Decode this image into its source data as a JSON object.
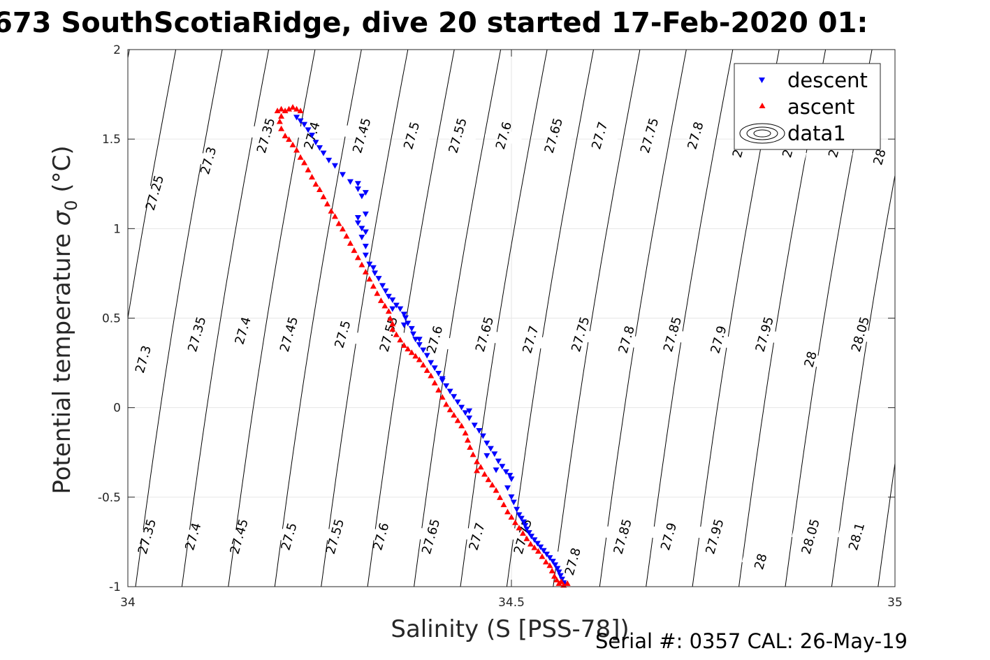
{
  "chart_data": {
    "type": "scatter",
    "title": "673 SouthScotiaRidge, dive 20 started 17-Feb-2020 01:",
    "xlabel": "Salinity (S [PSS-78])",
    "ylabel_main": "Potential temperature ",
    "ylabel_sym": "σ",
    "ylabel_sub": "0",
    "ylabel_unit": " (°C)",
    "xlim": [
      34,
      35
    ],
    "ylim": [
      -1,
      2
    ],
    "xticks": [
      "34",
      "34.5",
      "35"
    ],
    "yticks": [
      "2",
      "1.5",
      "1",
      "0.5",
      "0",
      "-0.5",
      "-1"
    ],
    "xtick_values": [
      34,
      34.5,
      35
    ],
    "ytick_values": [
      2,
      1.5,
      1,
      0.5,
      0,
      -0.5,
      -1
    ],
    "grid": true,
    "legend_position": "top-right",
    "legend": [
      "descent",
      "ascent",
      "data1"
    ],
    "series": [
      {
        "name": "descent",
        "marker": "triangle-down",
        "color": "#0000ff",
        "points": [
          [
            34.22,
            1.62
          ],
          [
            34.225,
            1.6
          ],
          [
            34.23,
            1.58
          ],
          [
            34.235,
            1.55
          ],
          [
            34.24,
            1.52
          ],
          [
            34.245,
            1.48
          ],
          [
            34.25,
            1.45
          ],
          [
            34.255,
            1.42
          ],
          [
            34.262,
            1.38
          ],
          [
            34.27,
            1.35
          ],
          [
            34.28,
            1.3
          ],
          [
            34.29,
            1.26
          ],
          [
            34.3,
            1.22
          ],
          [
            34.305,
            1.18
          ],
          [
            34.3,
            1.25
          ],
          [
            34.31,
            1.2
          ],
          [
            34.3,
            1.06
          ],
          [
            34.3,
            1.03
          ],
          [
            34.305,
            1.0
          ],
          [
            34.31,
            0.98
          ],
          [
            34.31,
            1.08
          ],
          [
            34.305,
            0.95
          ],
          [
            34.31,
            0.9
          ],
          [
            34.31,
            0.85
          ],
          [
            34.315,
            0.8
          ],
          [
            34.32,
            0.78
          ],
          [
            34.322,
            0.75
          ],
          [
            34.327,
            0.72
          ],
          [
            34.332,
            0.68
          ],
          [
            34.336,
            0.65
          ],
          [
            34.34,
            0.62
          ],
          [
            34.345,
            0.6
          ],
          [
            34.35,
            0.57
          ],
          [
            34.355,
            0.55
          ],
          [
            34.36,
            0.52
          ],
          [
            34.362,
            0.5
          ],
          [
            34.365,
            0.47
          ],
          [
            34.37,
            0.44
          ],
          [
            34.372,
            0.41
          ],
          [
            34.375,
            0.38
          ],
          [
            34.38,
            0.35
          ],
          [
            34.385,
            0.32
          ],
          [
            34.39,
            0.29
          ],
          [
            34.395,
            0.25
          ],
          [
            34.4,
            0.22
          ],
          [
            34.405,
            0.19
          ],
          [
            34.41,
            0.15
          ],
          [
            34.415,
            0.12
          ],
          [
            34.42,
            0.09
          ],
          [
            34.425,
            0.06
          ],
          [
            34.43,
            0.03
          ],
          [
            34.435,
            0.0
          ],
          [
            34.44,
            -0.03
          ],
          [
            34.445,
            -0.06
          ],
          [
            34.452,
            -0.1
          ],
          [
            34.458,
            -0.13
          ],
          [
            34.463,
            -0.16
          ],
          [
            34.468,
            -0.2
          ],
          [
            34.473,
            -0.23
          ],
          [
            34.478,
            -0.26
          ],
          [
            34.483,
            -0.3
          ],
          [
            34.488,
            -0.33
          ],
          [
            34.493,
            -0.36
          ],
          [
            34.498,
            -0.38
          ],
          [
            34.5,
            -0.4
          ],
          [
            34.495,
            -0.45
          ],
          [
            34.5,
            -0.5
          ],
          [
            34.503,
            -0.53
          ],
          [
            34.507,
            -0.57
          ],
          [
            34.51,
            -0.6
          ],
          [
            34.513,
            -0.62
          ],
          [
            34.516,
            -0.64
          ],
          [
            34.518,
            -0.66
          ],
          [
            34.52,
            -0.68
          ],
          [
            34.523,
            -0.7
          ],
          [
            34.526,
            -0.72
          ],
          [
            34.53,
            -0.74
          ],
          [
            34.534,
            -0.76
          ],
          [
            34.538,
            -0.78
          ],
          [
            34.542,
            -0.8
          ],
          [
            34.546,
            -0.82
          ],
          [
            34.55,
            -0.84
          ],
          [
            34.554,
            -0.86
          ],
          [
            34.557,
            -0.88
          ],
          [
            34.56,
            -0.9
          ],
          [
            34.562,
            -0.92
          ],
          [
            34.564,
            -0.94
          ],
          [
            34.566,
            -0.96
          ],
          [
            34.568,
            -0.98
          ],
          [
            34.57,
            -0.99
          ],
          [
            34.48,
            -0.35
          ],
          [
            34.468,
            -0.27
          ],
          [
            34.445,
            -0.02
          ],
          [
            34.41,
            0.16
          ],
          [
            34.38,
            0.38
          ],
          [
            34.36,
            0.46
          ],
          [
            34.345,
            0.55
          ]
        ]
      },
      {
        "name": "ascent",
        "marker": "triangle-up",
        "color": "#ff0000",
        "points": [
          [
            34.195,
            1.66
          ],
          [
            34.2,
            1.67
          ],
          [
            34.205,
            1.66
          ],
          [
            34.21,
            1.67
          ],
          [
            34.215,
            1.68
          ],
          [
            34.22,
            1.67
          ],
          [
            34.225,
            1.66
          ],
          [
            34.2,
            1.63
          ],
          [
            34.198,
            1.6
          ],
          [
            34.2,
            1.56
          ],
          [
            34.205,
            1.52
          ],
          [
            34.21,
            1.5
          ],
          [
            34.215,
            1.47
          ],
          [
            34.22,
            1.44
          ],
          [
            34.225,
            1.4
          ],
          [
            34.23,
            1.37
          ],
          [
            34.235,
            1.33
          ],
          [
            34.24,
            1.29
          ],
          [
            34.245,
            1.25
          ],
          [
            34.25,
            1.22
          ],
          [
            34.255,
            1.18
          ],
          [
            34.26,
            1.14
          ],
          [
            34.265,
            1.1
          ],
          [
            34.27,
            1.07
          ],
          [
            34.275,
            1.03
          ],
          [
            34.28,
            1.0
          ],
          [
            34.285,
            0.96
          ],
          [
            34.29,
            0.92
          ],
          [
            34.295,
            0.88
          ],
          [
            34.3,
            0.84
          ],
          [
            34.305,
            0.8
          ],
          [
            34.31,
            0.76
          ],
          [
            34.315,
            0.72
          ],
          [
            34.32,
            0.68
          ],
          [
            34.325,
            0.64
          ],
          [
            34.33,
            0.6
          ],
          [
            34.335,
            0.57
          ],
          [
            34.34,
            0.54
          ],
          [
            34.342,
            0.5
          ],
          [
            34.345,
            0.47
          ],
          [
            34.345,
            0.44
          ],
          [
            34.35,
            0.41
          ],
          [
            34.355,
            0.38
          ],
          [
            34.36,
            0.35
          ],
          [
            34.365,
            0.33
          ],
          [
            34.37,
            0.31
          ],
          [
            34.375,
            0.29
          ],
          [
            34.38,
            0.27
          ],
          [
            34.385,
            0.24
          ],
          [
            34.39,
            0.21
          ],
          [
            34.395,
            0.18
          ],
          [
            34.4,
            0.14
          ],
          [
            34.405,
            0.1
          ],
          [
            34.41,
            0.06
          ],
          [
            34.415,
            0.02
          ],
          [
            34.42,
            -0.01
          ],
          [
            34.425,
            -0.04
          ],
          [
            34.43,
            -0.07
          ],
          [
            34.435,
            -0.1
          ],
          [
            34.44,
            -0.14
          ],
          [
            34.443,
            -0.18
          ],
          [
            34.446,
            -0.22
          ],
          [
            34.45,
            -0.26
          ],
          [
            34.455,
            -0.3
          ],
          [
            34.46,
            -0.33
          ],
          [
            34.455,
            -0.35
          ],
          [
            34.465,
            -0.37
          ],
          [
            34.47,
            -0.4
          ],
          [
            34.475,
            -0.43
          ],
          [
            34.48,
            -0.46
          ],
          [
            34.485,
            -0.5
          ],
          [
            34.49,
            -0.54
          ],
          [
            34.495,
            -0.58
          ],
          [
            34.5,
            -0.61
          ],
          [
            34.505,
            -0.64
          ],
          [
            34.51,
            -0.67
          ],
          [
            34.515,
            -0.7
          ],
          [
            34.52,
            -0.73
          ],
          [
            34.525,
            -0.76
          ],
          [
            34.53,
            -0.78
          ],
          [
            34.535,
            -0.8
          ],
          [
            34.54,
            -0.83
          ],
          [
            34.545,
            -0.86
          ],
          [
            34.55,
            -0.88
          ],
          [
            34.553,
            -0.91
          ],
          [
            34.556,
            -0.94
          ],
          [
            34.559,
            -0.96
          ],
          [
            34.562,
            -0.98
          ],
          [
            34.565,
            -0.97
          ],
          [
            34.568,
            -0.99
          ],
          [
            34.573,
            -0.98
          ]
        ]
      }
    ],
    "isopycnals": [
      {
        "label": "27.25",
        "s": 34.0,
        "label_s": 34.035,
        "label_t": 1.2
      },
      {
        "label": "27.3",
        "s": 34.1,
        "label_s": 34.1,
        "label_t": 1.38
      },
      {
        "label": "27.35",
        "s": 34.16,
        "label_s": 34.18,
        "label_t": 1.54
      },
      {
        "label": "27.4",
        "s": 34.22,
        "label_s": 34.24,
        "label_t": 1.54
      },
      {
        "label": "27.45",
        "s": 34.29,
        "label_s": 34.31,
        "label_t": 1.54
      },
      {
        "label": "27.5",
        "s": 34.35,
        "label_s": 34.37,
        "label_t": 1.54
      },
      {
        "label": "27.55",
        "s": 34.41,
        "label_s": 34.43,
        "label_t": 1.54
      },
      {
        "label": "27.6",
        "s": 34.47,
        "label_s": 34.49,
        "label_t": 1.54
      },
      {
        "label": "27.65",
        "s": 34.53,
        "label_s": 34.555,
        "label_t": 1.54
      },
      {
        "label": "27.7",
        "s": 34.6,
        "label_s": 34.615,
        "label_t": 1.54
      },
      {
        "label": "27.75",
        "s": 34.66,
        "label_s": 34.68,
        "label_t": 1.54
      },
      {
        "label": "27.8",
        "s": 34.72,
        "label_s": 34.74,
        "label_t": 1.54
      },
      {
        "label": "27.85",
        "s": 34.78,
        "label_s": 34.79,
        "label_t": 1.45
      },
      {
        "label": "27.9",
        "s": 34.84,
        "label_s": 34.86,
        "label_t": 1.45
      },
      {
        "label": "27.95",
        "s": 34.9,
        "label_s": 34.92,
        "label_t": 1.45
      },
      {
        "label": "28",
        "s": 34.97,
        "label_s": 34.98,
        "label_t": 1.4
      },
      {
        "label": "28.05",
        "s": 35.03,
        "label_s": 35.0,
        "label_t": 0.5
      }
    ],
    "isopycnal_labels": [
      {
        "text": "27.3",
        "s": 34.02,
        "t": 0.27
      },
      {
        "text": "27.35",
        "s": 34.09,
        "t": 0.41
      },
      {
        "text": "27.4",
        "s": 34.15,
        "t": 0.43
      },
      {
        "text": "27.45",
        "s": 34.21,
        "t": 0.41
      },
      {
        "text": "27.5",
        "s": 34.28,
        "t": 0.41
      },
      {
        "text": "27.55",
        "s": 34.34,
        "t": 0.41
      },
      {
        "text": "27.6",
        "s": 34.4,
        "t": 0.38
      },
      {
        "text": "27.65",
        "s": 34.465,
        "t": 0.41
      },
      {
        "text": "27.7",
        "s": 34.525,
        "t": 0.38
      },
      {
        "text": "27.75",
        "s": 34.59,
        "t": 0.41
      },
      {
        "text": "27.8",
        "s": 34.65,
        "t": 0.38
      },
      {
        "text": "27.85",
        "s": 34.71,
        "t": 0.41
      },
      {
        "text": "27.9",
        "s": 34.77,
        "t": 0.38
      },
      {
        "text": "27.95",
        "s": 34.83,
        "t": 0.41
      },
      {
        "text": "28",
        "s": 34.89,
        "t": 0.27
      },
      {
        "text": "28.05",
        "s": 34.955,
        "t": 0.41
      },
      {
        "text": "27.35",
        "s": 34.025,
        "t": -0.72
      },
      {
        "text": "27.4",
        "s": 34.085,
        "t": -0.72
      },
      {
        "text": "27.45",
        "s": 34.145,
        "t": -0.72
      },
      {
        "text": "27.5",
        "s": 34.21,
        "t": -0.72
      },
      {
        "text": "27.55",
        "s": 34.27,
        "t": -0.72
      },
      {
        "text": "27.6",
        "s": 34.33,
        "t": -0.72
      },
      {
        "text": "27.65",
        "s": 34.395,
        "t": -0.72
      },
      {
        "text": "27.7",
        "s": 34.455,
        "t": -0.72
      },
      {
        "text": "27.75",
        "s": 34.515,
        "t": -0.72
      },
      {
        "text": "27.8",
        "s": 34.58,
        "t": -0.86
      },
      {
        "text": "27.85",
        "s": 34.645,
        "t": -0.72
      },
      {
        "text": "27.9",
        "s": 34.705,
        "t": -0.72
      },
      {
        "text": "27.95",
        "s": 34.765,
        "t": -0.72
      },
      {
        "text": "28",
        "s": 34.825,
        "t": -0.86
      },
      {
        "text": "28.05",
        "s": 34.89,
        "t": -0.72
      },
      {
        "text": "28.1",
        "s": 34.95,
        "t": -0.72
      },
      {
        "text": "27.25",
        "s": 34.035,
        "t": 1.2
      },
      {
        "text": "27.3",
        "s": 34.105,
        "t": 1.38
      },
      {
        "text": "27.35",
        "s": 34.18,
        "t": 1.52
      },
      {
        "text": "27.4",
        "s": 34.24,
        "t": 1.52
      },
      {
        "text": "27.45",
        "s": 34.305,
        "t": 1.52
      },
      {
        "text": "27.5",
        "s": 34.37,
        "t": 1.52
      },
      {
        "text": "27.55",
        "s": 34.43,
        "t": 1.52
      },
      {
        "text": "27.6",
        "s": 34.49,
        "t": 1.52
      },
      {
        "text": "27.65",
        "s": 34.555,
        "t": 1.52
      },
      {
        "text": "27.7",
        "s": 34.615,
        "t": 1.52
      },
      {
        "text": "27.75",
        "s": 34.68,
        "t": 1.52
      },
      {
        "text": "27.8",
        "s": 34.74,
        "t": 1.52
      },
      {
        "text": "2",
        "s": 34.795,
        "t": 1.42
      },
      {
        "text": "2",
        "s": 34.86,
        "t": 1.42
      },
      {
        "text": "2",
        "s": 34.92,
        "t": 1.42
      },
      {
        "text": "28",
        "s": 34.98,
        "t": 1.4
      }
    ]
  },
  "footer": {
    "serial_text": "Serial #: 0357  CAL: 26-May-19"
  }
}
